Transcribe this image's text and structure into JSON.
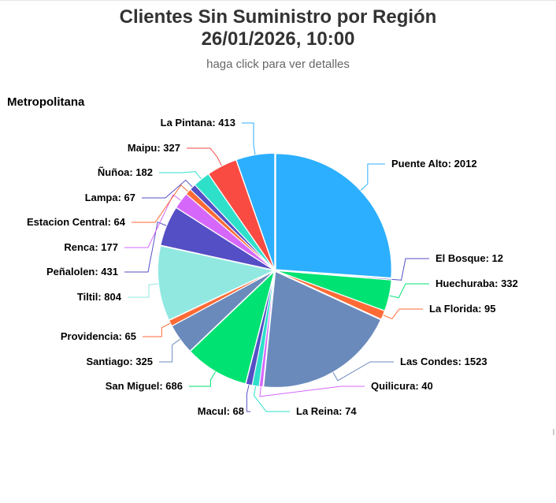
{
  "chart_data": {
    "type": "pie",
    "title_line1": "Clientes Sin Suministro por Región",
    "title_line2": "26/01/2026, 10:00",
    "subtitle": "haga click para ver detalles",
    "region": "Metropolitana",
    "slices": [
      {
        "name": "Puente Alto",
        "value": 2012,
        "color": "#2caffe"
      },
      {
        "name": "El Bosque",
        "value": 12,
        "color": "#544fc5"
      },
      {
        "name": "Huechuraba",
        "value": 332,
        "color": "#00e272"
      },
      {
        "name": "La Florida",
        "value": 95,
        "color": "#fe6a35"
      },
      {
        "name": "Las Condes",
        "value": 1523,
        "color": "#6b8abc"
      },
      {
        "name": "Quilicura",
        "value": 40,
        "color": "#d568fb"
      },
      {
        "name": "La Reina",
        "value": 74,
        "color": "#2ee0ca"
      },
      {
        "name": "Macul",
        "value": 68,
        "color": "#544fc5"
      },
      {
        "name": "San Miguel",
        "value": 686,
        "color": "#00e272"
      },
      {
        "name": "Santiago",
        "value": 325,
        "color": "#6b8abc"
      },
      {
        "name": "Providencia",
        "value": 65,
        "color": "#fe6a35"
      },
      {
        "name": "Tiltil",
        "value": 804,
        "color": "#91e8e1"
      },
      {
        "name": "Peñalolen",
        "value": 431,
        "color": "#544fc5"
      },
      {
        "name": "Renca",
        "value": 177,
        "color": "#d568fb"
      },
      {
        "name": "Estacion Central",
        "value": 64,
        "color": "#fe6a35"
      },
      {
        "name": "Lampa",
        "value": 67,
        "color": "#544fc5"
      },
      {
        "name": "Ñuñoa",
        "value": 182,
        "color": "#2ee0ca"
      },
      {
        "name": "Maipu",
        "value": 327,
        "color": "#fa4b42"
      },
      {
        "name": "La Pintana",
        "value": 413,
        "color": "#2caffe"
      }
    ]
  }
}
